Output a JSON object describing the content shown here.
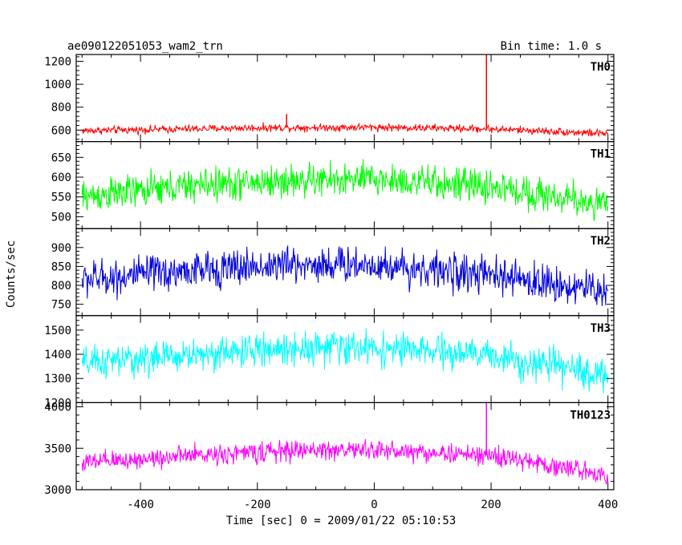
{
  "header": {
    "title": "ae090122051053_wam2_trn",
    "bin_time": "Bin time: 1.0 s"
  },
  "axes": {
    "xlabel": "Time [sec] 0 = 2009/01/22 05:10:53",
    "ylabel": "Counts/sec"
  },
  "chart_data": {
    "type": "line",
    "x_range": [
      -510,
      410
    ],
    "x_ticks": [
      -400,
      -200,
      0,
      200,
      400
    ],
    "grid": false,
    "panels": [
      {
        "name": "TH0",
        "color": "#ff0000",
        "ylim": [
          500,
          1260
        ],
        "yticks": [
          600,
          800,
          1000,
          1200
        ],
        "baseline": [
          [
            -500,
            595
          ],
          [
            -200,
            620
          ],
          [
            0,
            625
          ],
          [
            200,
            610
          ],
          [
            400,
            570
          ]
        ],
        "noise": 22,
        "spikes": [
          [
            -150,
            740
          ],
          [
            192,
            1260
          ]
        ]
      },
      {
        "name": "TH1",
        "color": "#00ff00",
        "ylim": [
          470,
          690
        ],
        "yticks": [
          500,
          550,
          600,
          650
        ],
        "baseline": [
          [
            -500,
            550
          ],
          [
            -300,
            580
          ],
          [
            -150,
            590
          ],
          [
            0,
            595
          ],
          [
            200,
            575
          ],
          [
            400,
            530
          ]
        ],
        "noise": 28,
        "spikes": []
      },
      {
        "name": "TH2",
        "color": "#0000dd",
        "ylim": [
          720,
          950
        ],
        "yticks": [
          750,
          800,
          850,
          900
        ],
        "baseline": [
          [
            -500,
            815
          ],
          [
            -300,
            840
          ],
          [
            -150,
            855
          ],
          [
            0,
            855
          ],
          [
            200,
            825
          ],
          [
            400,
            785
          ]
        ],
        "noise": 32,
        "spikes": []
      },
      {
        "name": "TH3",
        "color": "#00ffff",
        "ylim": [
          1200,
          1560
        ],
        "yticks": [
          1200,
          1300,
          1400,
          1500
        ],
        "baseline": [
          [
            -500,
            1360
          ],
          [
            -300,
            1400
          ],
          [
            -100,
            1430
          ],
          [
            0,
            1425
          ],
          [
            200,
            1395
          ],
          [
            400,
            1310
          ]
        ],
        "noise": 45,
        "spikes": []
      },
      {
        "name": "TH0123",
        "color": "#ff00ff",
        "ylim": [
          3000,
          4050
        ],
        "yticks": [
          3000,
          3500,
          4000
        ],
        "baseline": [
          [
            -500,
            3320
          ],
          [
            -300,
            3420
          ],
          [
            -100,
            3480
          ],
          [
            0,
            3480
          ],
          [
            200,
            3410
          ],
          [
            400,
            3180
          ]
        ],
        "noise": 80,
        "spikes": [
          [
            192,
            4050
          ]
        ]
      }
    ]
  }
}
